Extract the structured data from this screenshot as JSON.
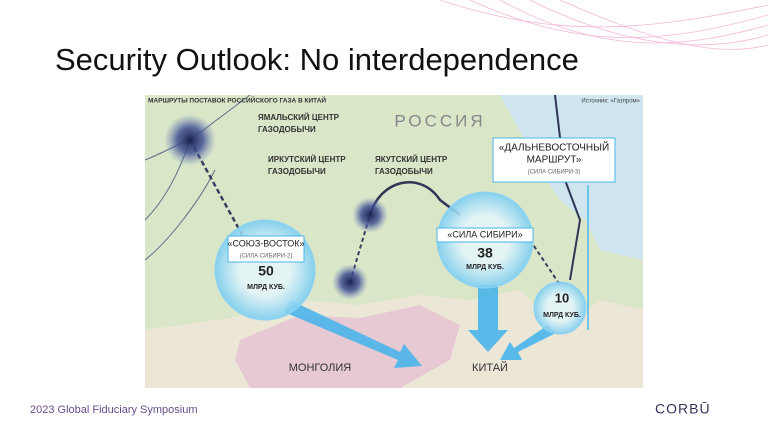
{
  "title": "Security Outlook: No interdependence",
  "map": {
    "title": "МАРШРУТЫ ПОСТАВОК РОССИЙСКОГО ГАЗА В КИТАЙ",
    "source": "Источник: «Газпром»",
    "countries": [
      "РОССИЯ",
      "МОНГОЛИЯ",
      "КИТАЙ"
    ],
    "centers": [
      {
        "lines": [
          "ЯМАЛЬСКИЙ ЦЕНТР",
          "ГАЗОДОБЫЧИ"
        ]
      },
      {
        "lines": [
          "ИРКУТСКИЙ ЦЕНТР",
          "ГАЗОДОБЫЧИ"
        ]
      },
      {
        "lines": [
          "ЯКУТСКИЙ ЦЕНТР",
          "ГАЗОДОБЫЧИ"
        ]
      }
    ],
    "routes": [
      {
        "name": [
          "«СОЮЗ-ВОСТОК»"
        ],
        "alt": "(СИЛА СИБИРИ-2)",
        "volume": 50,
        "unit": "МЛРД КУБ."
      },
      {
        "name": [
          "«СИЛА СИБИРИ»"
        ],
        "volume": 38,
        "unit": "МЛРД КУБ."
      },
      {
        "name": [
          "«ДАЛЬНЕВОСТОЧНЫЙ",
          "МАРШРУТ»"
        ],
        "alt": "(СИЛА СИБИРИ-3)",
        "volume": 10,
        "unit": "МЛРД КУБ."
      }
    ]
  },
  "footer": {
    "event": "2023 Global Fiduciary Symposium",
    "logo": "CORBŪ"
  }
}
